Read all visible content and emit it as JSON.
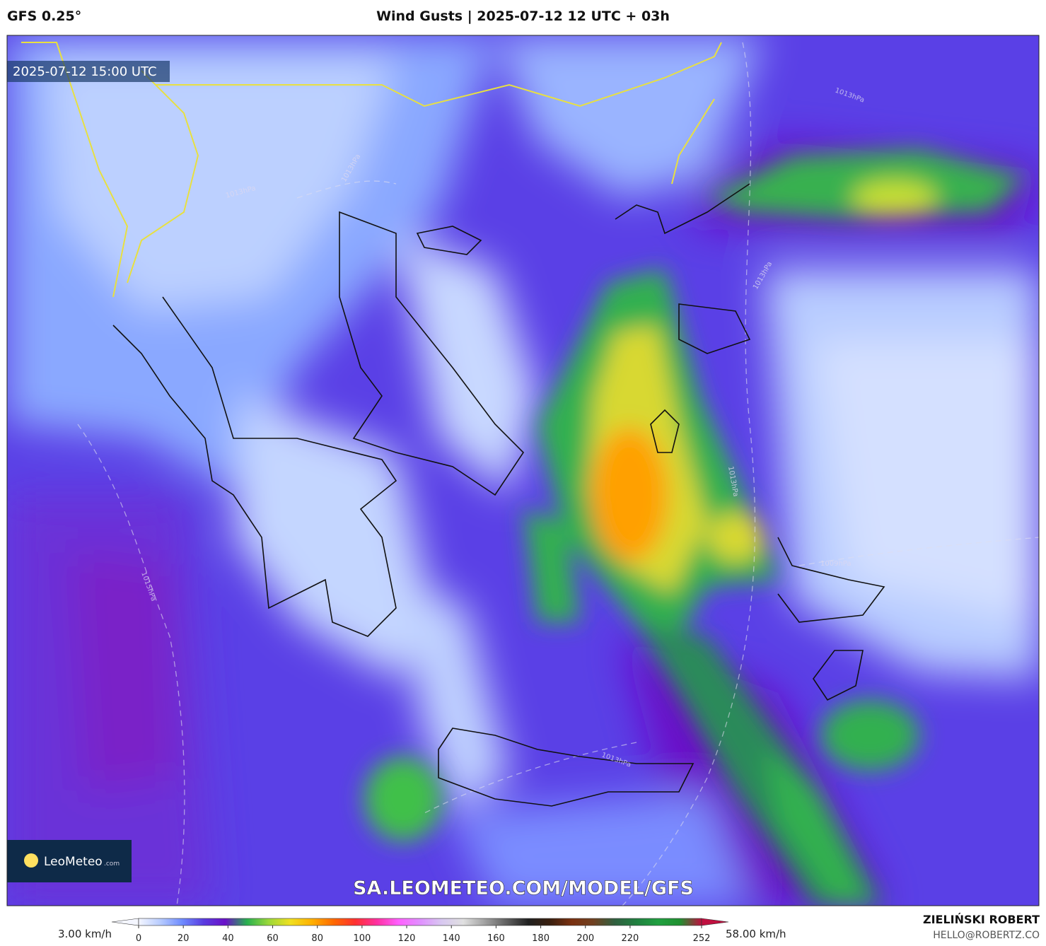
{
  "header": {
    "model": "GFS 0.25°",
    "title": "Wind Gusts | 2025-07-12 12 UTC + 03h"
  },
  "map": {
    "valid_time": "2025-07-12 15:00 UTC",
    "logo": {
      "name": "LeoMeteo",
      "suffix": ".com"
    },
    "watermark": "SA.LEOMETEO.COM/MODEL/GFS",
    "isobar_labels": [
      "1013hPa",
      "1013hPa",
      "1013hPa",
      "1013hPa",
      "1013hPa",
      "1015hPa",
      "1009hPa",
      "1013hPa"
    ]
  },
  "colorbar": {
    "min_label": "3.00 km/h",
    "max_label": "58.00 km/h",
    "lim": [
      0,
      252
    ],
    "ticks": [
      0,
      20,
      40,
      60,
      80,
      100,
      120,
      140,
      160,
      180,
      200,
      220,
      252
    ],
    "colors": [
      "#f4f6ff",
      "#b8ccff",
      "#6f8cff",
      "#5a3ce0",
      "#6a10c8",
      "#28b050",
      "#9ad83a",
      "#f0e020",
      "#ffb000",
      "#ff6a00",
      "#ff3030",
      "#ff30a0",
      "#ff60ff",
      "#e090ff",
      "#d8c8f0",
      "#e0e0e0",
      "#a0a0a0",
      "#606060",
      "#202020",
      "#3a2010",
      "#7a3010",
      "#704020",
      "#306040",
      "#208040",
      "#20a040",
      "#209030",
      "#c01040"
    ]
  },
  "footer": {
    "author": "ZIELIŃSKI ROBERT",
    "contact": "HELLO@ROBERTZ.CO"
  }
}
